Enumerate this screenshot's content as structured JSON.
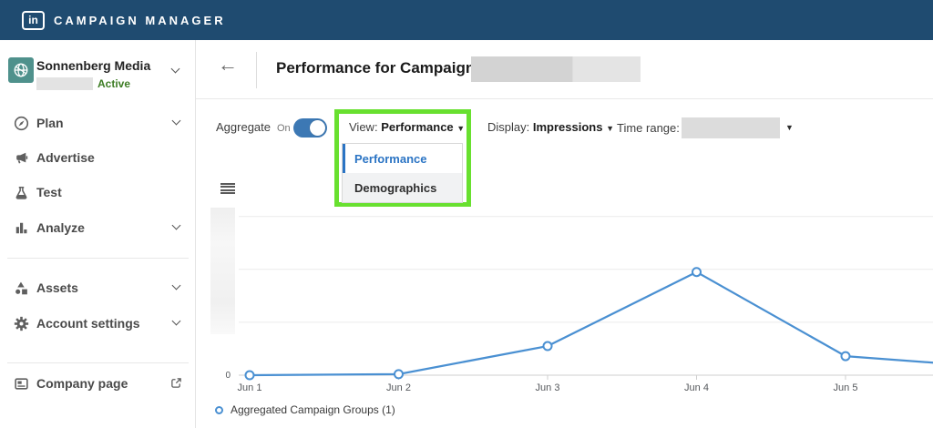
{
  "topbar": {
    "logo_text": "in",
    "title": "CAMPAIGN MANAGER"
  },
  "icons": {
    "back_arrow": "←",
    "caret_down": "▼"
  },
  "sidebar": {
    "account": {
      "name": "Sonnenberg Media",
      "status": "Active",
      "id_redacted": true
    },
    "items": [
      {
        "label": "Plan",
        "icon": "compass-icon",
        "chevron": true
      },
      {
        "label": "Advertise",
        "icon": "megaphone-icon",
        "chevron": false
      },
      {
        "label": "Test",
        "icon": "flask-icon",
        "chevron": false
      },
      {
        "label": "Analyze",
        "icon": "bar-chart-icon",
        "chevron": true
      },
      {
        "label": "Assets",
        "icon": "shapes-icon",
        "chevron": true
      },
      {
        "label": "Account settings",
        "icon": "gear-icon",
        "chevron": true
      },
      {
        "label": "Company page",
        "icon": "company-page-icon",
        "external_link": true
      }
    ]
  },
  "header": {
    "title": "Performance for Campaign Group:",
    "campaign_name_redacted": true
  },
  "toolbar": {
    "aggregate_label": "Aggregate",
    "aggregate_state": "On",
    "view_label": "View:",
    "view_value": "Performance",
    "view_options": [
      "Performance",
      "Demographics"
    ],
    "view_selected_option": "Performance",
    "display_label": "Display:",
    "display_value": "Impressions",
    "time_range_label": "Time range:",
    "time_range_value_redacted": true
  },
  "annotation": {
    "highlight_color": "#68e02f",
    "highlights": "View dropdown and its open menu"
  },
  "chart_data": {
    "type": "line",
    "title": "",
    "xlabel": "",
    "ylabel": "",
    "categories": [
      "Jun 1",
      "Jun 2",
      "Jun 3",
      "Jun 4",
      "Jun 5"
    ],
    "series": [
      {
        "name": "Aggregated Campaign Groups (1)",
        "values": [
          0,
          2,
          55,
          195,
          36
        ],
        "offscreen_next_value_estimate": 15
      }
    ],
    "values_estimated_from_gridlines": true,
    "y_axis": {
      "min": 0,
      "visible_label": "0",
      "labels_redacted": true,
      "gridline_values": [
        100,
        200,
        300
      ],
      "estimated_max": 300
    },
    "grid": true,
    "legend_position": "bottom-left",
    "line_color": "#4a90d2",
    "marker": "open-circle"
  },
  "colors": {
    "topbar_bg": "#1f4b70",
    "avatar_teal": "#4f918c",
    "active_green": "#3e7d25",
    "toggle_blue": "#3c78b4",
    "selected_option_blue": "#2b74c4",
    "chart_line_blue": "#4a90d2",
    "annotation_green": "#68e02f"
  }
}
